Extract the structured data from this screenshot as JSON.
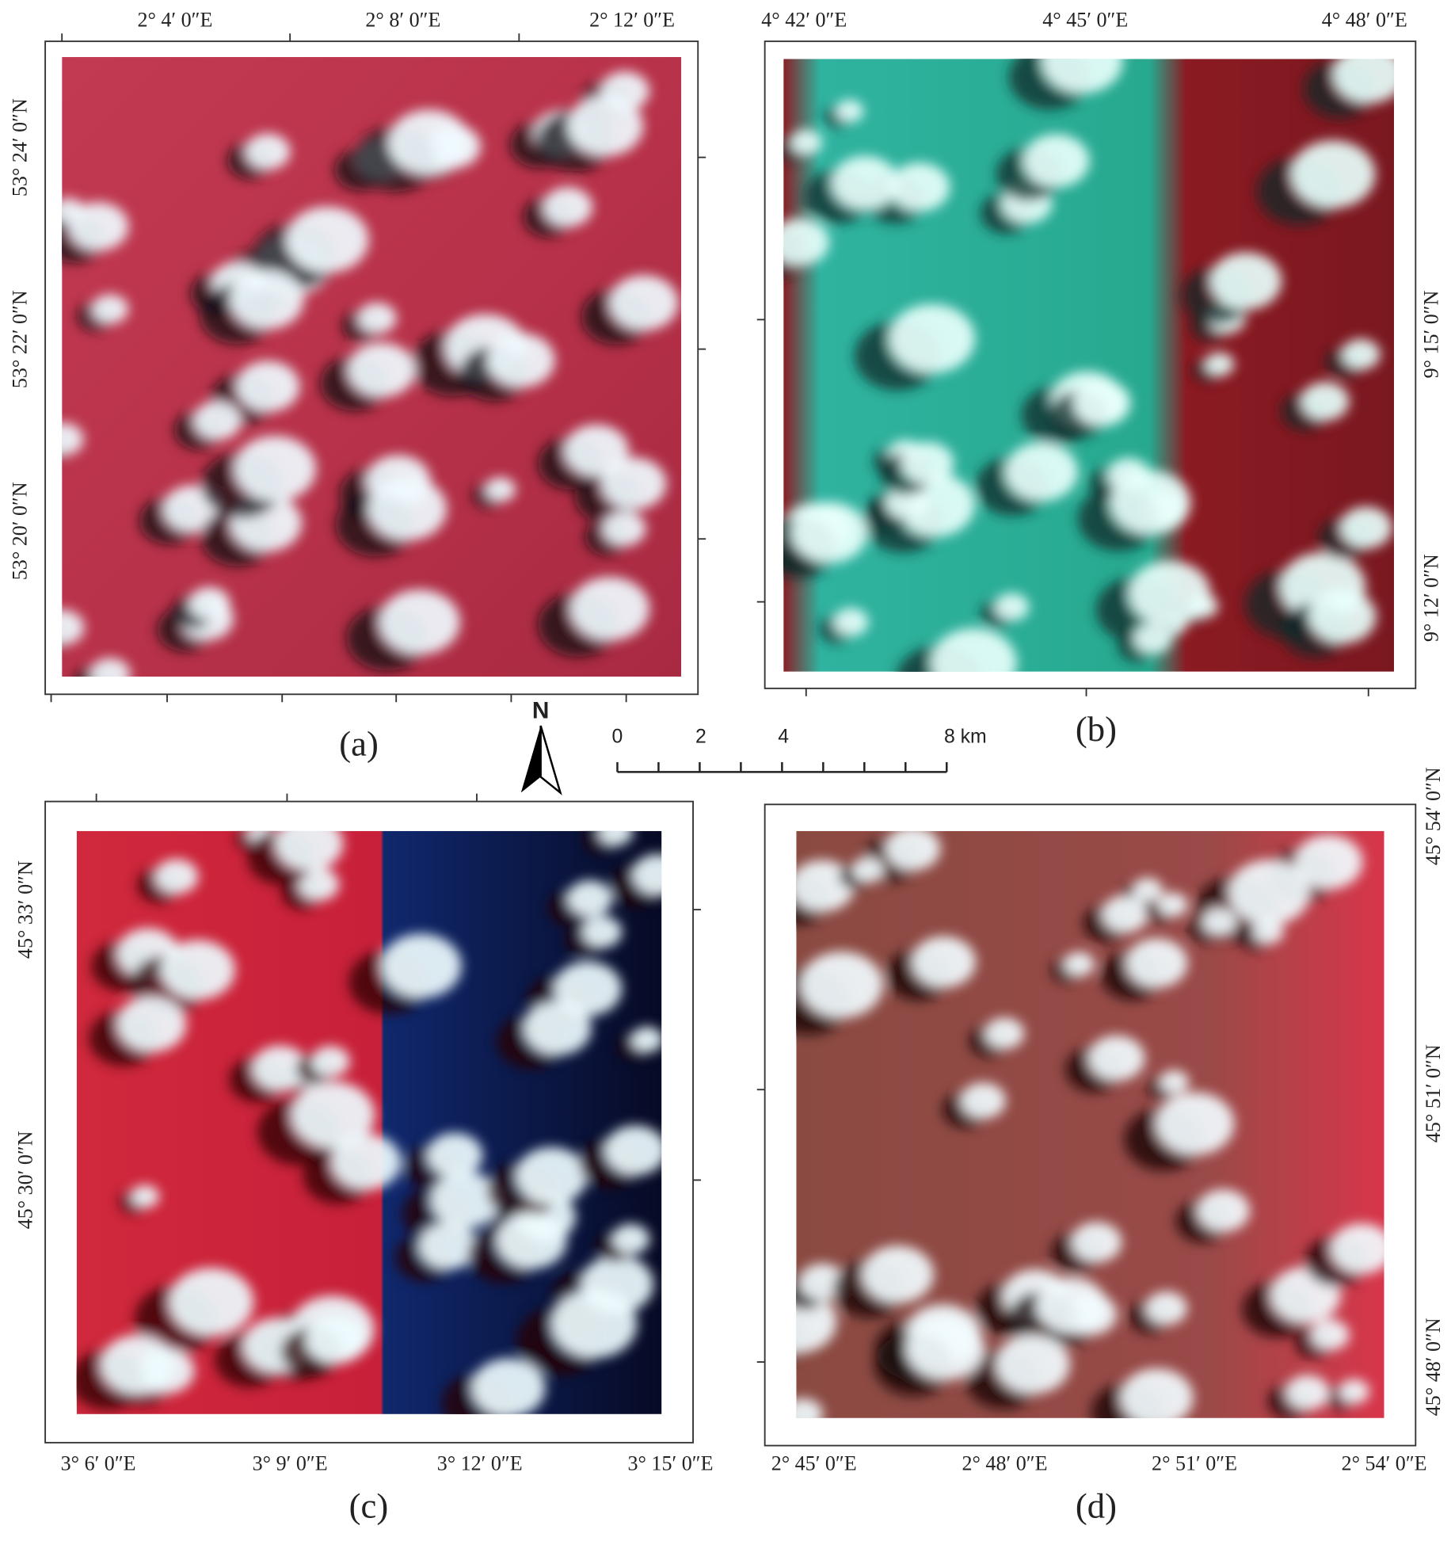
{
  "north_label": "N",
  "scale_bar": {
    "labels": [
      "0",
      "2",
      "4",
      "8 km"
    ]
  },
  "panels": [
    {
      "caption": "(a)",
      "x_labels": [
        "2° 4′ 0″E",
        "2° 8′ 0″E",
        "2° 12′ 0″E"
      ],
      "y_labels": [
        "53° 24′ 0″N",
        "53° 22′ 0″N",
        "53° 20′ 0″N"
      ]
    },
    {
      "caption": "(b)",
      "x_labels": [
        "4° 42′ 0″E",
        "4° 45′ 0″E",
        "4° 48′ 0″E"
      ],
      "y_labels": [
        "9° 15′ 0″N",
        "9° 12′ 0″N"
      ]
    },
    {
      "caption": "(c)",
      "x_labels": [
        "3° 6′ 0″E",
        "3° 9′ 0″E",
        "3° 12′ 0″E",
        "3° 15′ 0″E"
      ],
      "y_labels": [
        "45° 33′ 0″N",
        "45° 30′ 0″N"
      ]
    },
    {
      "caption": "(d)",
      "x_labels": [
        "2° 45′ 0″E",
        "2° 48′ 0″E",
        "2° 51′ 0″E",
        "2° 54′ 0″E"
      ],
      "y_labels": [
        "45° 54′ 0″N",
        "45° 51′ 0″N",
        "45° 48′ 0″N"
      ]
    }
  ]
}
